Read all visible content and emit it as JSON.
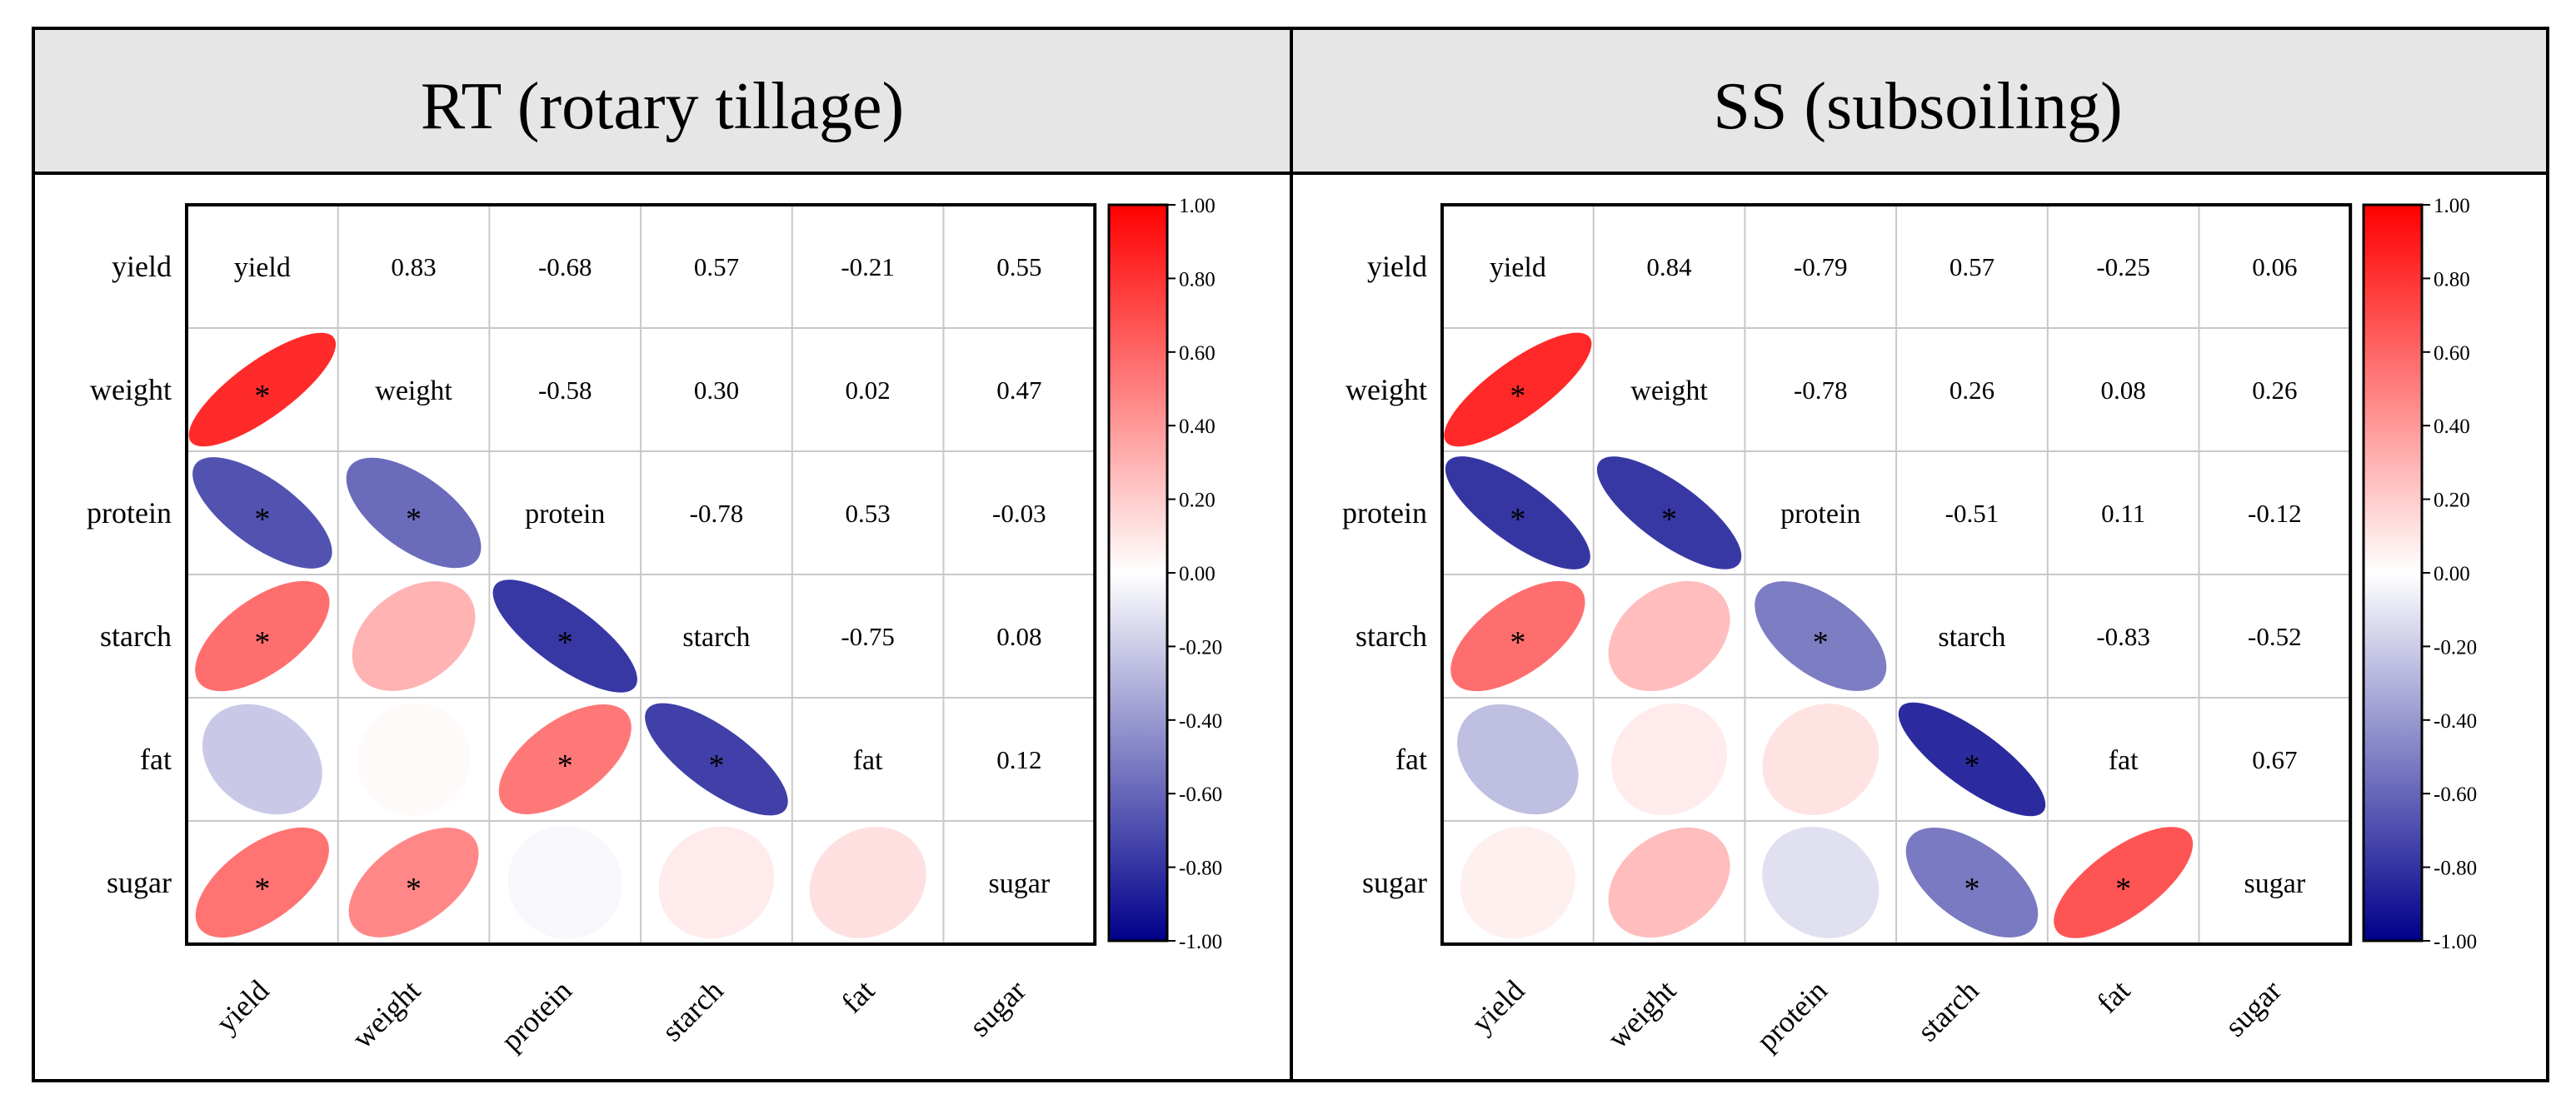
{
  "colors": {
    "positive": "#ff0000",
    "neutral": "#ffffff",
    "negative": "#00008b",
    "panel_header_bg": "#e6e6e6",
    "frame": "#000000",
    "grid": "#c8c8c8"
  },
  "chart_data": [
    {
      "type": "heatmap",
      "title": "RT (rotary tillage)",
      "variables": [
        "yield",
        "weight",
        "protein",
        "starch",
        "fat",
        "sugar"
      ],
      "matrix": [
        [
          1.0,
          0.83,
          -0.68,
          0.57,
          -0.21,
          0.55
        ],
        [
          0.83,
          1.0,
          -0.58,
          0.3,
          0.02,
          0.47
        ],
        [
          -0.68,
          -0.58,
          1.0,
          -0.78,
          0.53,
          -0.03
        ],
        [
          0.57,
          0.3,
          -0.78,
          1.0,
          -0.75,
          0.08
        ],
        [
          -0.21,
          0.02,
          0.53,
          -0.75,
          1.0,
          0.12
        ],
        [
          0.55,
          0.47,
          -0.03,
          0.08,
          0.12,
          1.0
        ]
      ],
      "value_labels": [
        [
          "",
          "0.83",
          "-0.68",
          "0.57",
          "-0.21",
          "0.55"
        ],
        [
          "",
          "",
          "-0.58",
          "0.30",
          "0.02",
          "0.47"
        ],
        [
          "",
          "",
          "",
          "-0.78",
          "0.53",
          "-0.03"
        ],
        [
          "",
          "",
          "",
          "",
          "-0.75",
          "0.08"
        ],
        [
          "",
          "",
          "",
          "",
          "",
          "0.12"
        ],
        [
          "",
          "",
          "",
          "",
          "",
          ""
        ]
      ],
      "significant": [
        [
          0,
          0,
          0,
          0,
          0,
          0
        ],
        [
          1,
          0,
          0,
          0,
          0,
          0
        ],
        [
          1,
          1,
          0,
          0,
          0,
          0
        ],
        [
          1,
          0,
          1,
          0,
          0,
          0
        ],
        [
          0,
          0,
          1,
          1,
          0,
          0
        ],
        [
          1,
          1,
          0,
          0,
          0,
          0
        ]
      ],
      "significance_marker": "*",
      "lower_triangle": "ellipse",
      "upper_triangle": "number",
      "colorbar": {
        "range": [
          -1.0,
          1.0
        ],
        "ticks": [
          "1.00",
          "0.80",
          "0.60",
          "0.40",
          "0.20",
          "0.00",
          "-0.20",
          "-0.40",
          "-0.60",
          "-0.80",
          "-1.00"
        ],
        "tick_values": [
          1.0,
          0.8,
          0.6,
          0.4,
          0.2,
          0.0,
          -0.2,
          -0.4,
          -0.6,
          -0.8,
          -1.0
        ]
      }
    },
    {
      "type": "heatmap",
      "title": "SS (subsoiling)",
      "variables": [
        "yield",
        "weight",
        "protein",
        "starch",
        "fat",
        "sugar"
      ],
      "matrix": [
        [
          1.0,
          0.84,
          -0.79,
          0.57,
          -0.25,
          0.06
        ],
        [
          0.84,
          1.0,
          -0.78,
          0.26,
          0.08,
          0.26
        ],
        [
          -0.79,
          -0.78,
          1.0,
          -0.51,
          0.11,
          -0.12
        ],
        [
          0.57,
          0.26,
          -0.51,
          1.0,
          -0.83,
          -0.52
        ],
        [
          -0.25,
          0.08,
          0.11,
          -0.83,
          1.0,
          0.67
        ],
        [
          0.06,
          0.26,
          -0.12,
          -0.52,
          0.67,
          1.0
        ]
      ],
      "value_labels": [
        [
          "",
          "0.84",
          "-0.79",
          "0.57",
          "-0.25",
          "0.06"
        ],
        [
          "",
          "",
          "-0.78",
          "0.26",
          "0.08",
          "0.26"
        ],
        [
          "",
          "",
          "",
          "-0.51",
          "0.11",
          "-0.12"
        ],
        [
          "",
          "",
          "",
          "",
          "-0.83",
          "-0.52"
        ],
        [
          "",
          "",
          "",
          "",
          "",
          "0.67"
        ],
        [
          "",
          "",
          "",
          "",
          "",
          ""
        ]
      ],
      "significant": [
        [
          0,
          0,
          0,
          0,
          0,
          0
        ],
        [
          1,
          0,
          0,
          0,
          0,
          0
        ],
        [
          1,
          1,
          0,
          0,
          0,
          0
        ],
        [
          1,
          0,
          1,
          0,
          0,
          0
        ],
        [
          0,
          0,
          0,
          1,
          0,
          0
        ],
        [
          0,
          0,
          0,
          1,
          1,
          0
        ]
      ],
      "significance_marker": "*",
      "lower_triangle": "ellipse",
      "upper_triangle": "number",
      "colorbar": {
        "range": [
          -1.0,
          1.0
        ],
        "ticks": [
          "1.00",
          "0.80",
          "0.60",
          "0.40",
          "0.20",
          "0.00",
          "-0.20",
          "-0.40",
          "-0.60",
          "-0.80",
          "-1.00"
        ],
        "tick_values": [
          1.0,
          0.8,
          0.6,
          0.4,
          0.2,
          0.0,
          -0.2,
          -0.4,
          -0.6,
          -0.8,
          -1.0
        ]
      }
    }
  ]
}
